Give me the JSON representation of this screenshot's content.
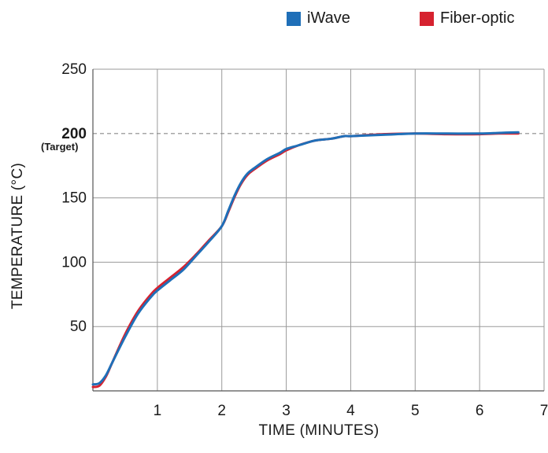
{
  "chart_data": {
    "type": "line",
    "xlabel": "TIME (MINUTES)",
    "ylabel": "TEMPERATURE (°C)",
    "xlim": [
      0,
      7
    ],
    "ylim": [
      0,
      250
    ],
    "xticks": [
      1,
      2,
      3,
      4,
      5,
      6,
      7
    ],
    "yticks": [
      50,
      100,
      150,
      200,
      250
    ],
    "target": {
      "value": 200,
      "tick_label": "200",
      "note": "(Target)"
    },
    "grid": true,
    "legend_position": "top-right",
    "series": [
      {
        "name": "iWave",
        "color": "#1f6fb8",
        "x": [
          0,
          0.1,
          0.2,
          0.3,
          0.5,
          0.7,
          0.9,
          1.0,
          1.2,
          1.4,
          1.6,
          1.8,
          2.0,
          2.1,
          2.2,
          2.3,
          2.4,
          2.5,
          2.7,
          2.9,
          3.0,
          3.2,
          3.4,
          3.5,
          3.7,
          3.9,
          4.0,
          4.5,
          5.0,
          5.5,
          6.0,
          6.3,
          6.6
        ],
        "y": [
          5,
          6,
          12,
          22,
          42,
          60,
          73,
          78,
          86,
          94,
          105,
          116,
          128,
          140,
          152,
          162,
          169,
          173,
          180,
          185,
          188,
          191,
          194,
          195,
          196,
          198,
          198,
          199,
          200,
          200,
          200,
          200.5,
          201
        ]
      },
      {
        "name": "Fiber-optic",
        "color": "#d6222f",
        "x": [
          0,
          0.1,
          0.2,
          0.3,
          0.5,
          0.7,
          0.9,
          1.0,
          1.2,
          1.4,
          1.6,
          1.8,
          2.0,
          2.1,
          2.2,
          2.3,
          2.4,
          2.5,
          2.7,
          2.9,
          3.0,
          3.2,
          3.4,
          3.5,
          3.7,
          3.9,
          4.0,
          4.5,
          5.0,
          5.5,
          6.0,
          6.3,
          6.6
        ],
        "y": [
          3,
          4,
          11,
          22,
          44,
          62,
          75,
          80,
          88,
          96,
          106,
          117,
          128,
          139,
          151,
          161,
          168,
          172,
          179,
          184,
          187,
          191,
          194,
          195,
          196,
          198,
          198,
          199.5,
          200,
          199.5,
          199.5,
          200,
          200
        ]
      }
    ]
  }
}
